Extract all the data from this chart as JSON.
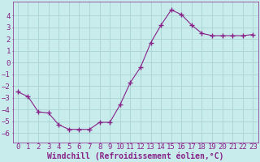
{
  "x": [
    0,
    1,
    2,
    3,
    4,
    5,
    6,
    7,
    8,
    9,
    10,
    11,
    12,
    13,
    14,
    15,
    16,
    17,
    18,
    19,
    20,
    21,
    22,
    23
  ],
  "y": [
    -2.5,
    -2.9,
    -4.2,
    -4.3,
    -5.3,
    -5.7,
    -5.7,
    -5.7,
    -5.1,
    -5.1,
    -3.6,
    -1.7,
    -0.4,
    1.7,
    3.2,
    4.5,
    4.1,
    3.2,
    2.5,
    2.3,
    2.3,
    2.3,
    2.3,
    2.4
  ],
  "line_color": "#882288",
  "marker": "+",
  "marker_size": 4,
  "bg_color": "#c8ecec",
  "grid_color": "#a8d4d4",
  "xlabel": "Windchill (Refroidissement éolien,°C)",
  "xlim": [
    -0.5,
    23.5
  ],
  "ylim": [
    -6.8,
    5.2
  ],
  "yticks": [
    -6,
    -5,
    -4,
    -3,
    -2,
    -1,
    0,
    1,
    2,
    3,
    4
  ],
  "xticks": [
    0,
    1,
    2,
    3,
    4,
    5,
    6,
    7,
    8,
    9,
    10,
    11,
    12,
    13,
    14,
    15,
    16,
    17,
    18,
    19,
    20,
    21,
    22,
    23
  ],
  "font_color": "#882288",
  "tick_fontsize": 6.5,
  "label_fontsize": 7.0,
  "linewidth": 0.8,
  "marker_linewidth": 1.0
}
